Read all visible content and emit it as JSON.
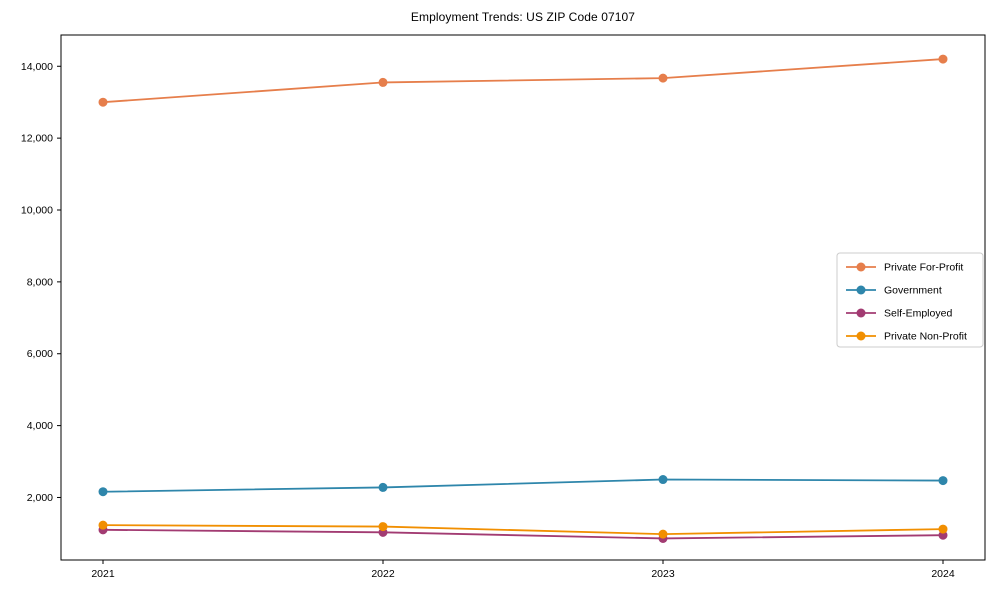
{
  "chart_data": {
    "type": "line",
    "title": "Employment Trends: US ZIP Code 07107",
    "x": [
      2021,
      2022,
      2023,
      2024
    ],
    "x_tick_labels": [
      "2021",
      "2022",
      "2023",
      "2024"
    ],
    "series": [
      {
        "name": "Private For-Profit",
        "color": "#E67E4B",
        "values": [
          13000,
          13550,
          13670,
          14200
        ]
      },
      {
        "name": "Government",
        "color": "#2E86AB",
        "values": [
          2160,
          2280,
          2500,
          2470
        ]
      },
      {
        "name": "Self-Employed",
        "color": "#A23B72",
        "values": [
          1100,
          1030,
          860,
          950
        ]
      },
      {
        "name": "Private Non-Profit",
        "color": "#F18F01",
        "values": [
          1230,
          1190,
          980,
          1120
        ]
      }
    ],
    "yticks": [
      2000,
      4000,
      6000,
      8000,
      10000,
      12000,
      14000
    ],
    "ylim": [
      260,
      14870
    ],
    "xlim": [
      2020.85,
      2024.15
    ],
    "xlabel": "",
    "ylabel": "",
    "grid": false,
    "legend_position": "center right",
    "marker": "circle",
    "axis_color": "#000000",
    "legend_border_color": "#cccccc"
  }
}
